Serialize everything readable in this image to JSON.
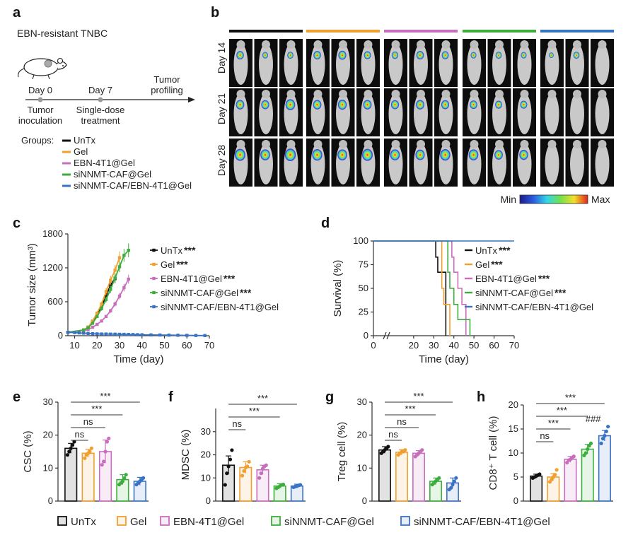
{
  "panel_labels": {
    "a": "a",
    "b": "b",
    "c": "c",
    "d": "d",
    "e": "e",
    "f": "f",
    "g": "g",
    "h": "h"
  },
  "colors": {
    "UnTx": "#111111",
    "Gel": "#f0a030",
    "EBN-4T1@Gel": "#c76fbd",
    "siNNMT-CAF@Gel": "#3dae3d",
    "siNNMT-CAF/EBN-4T1@Gel": "#3b73c4"
  },
  "panel_a": {
    "title": "EBN-resistant TNBC",
    "timeline": [
      {
        "day": "Day 0",
        "event1": "Tumor",
        "event2": "inoculation"
      },
      {
        "day": "Day 7",
        "event1": "Single-dose",
        "event2": "treatment"
      },
      {
        "day": "",
        "event1": "Tumor",
        "event2": "profiling"
      }
    ],
    "groups_label": "Groups:",
    "groups": [
      "UnTx",
      "Gel",
      "EBN-4T1@Gel",
      "siNNMT-CAF@Gel",
      "siNNMT-CAF/EBN-4T1@Gel"
    ]
  },
  "panel_b": {
    "days": [
      "Day 14",
      "Day 21",
      "Day 28"
    ],
    "colorbar_min": "Min",
    "colorbar_max": "Max",
    "signal_rows": [
      [
        [
          0.5,
          0.3,
          0.35
        ],
        [
          0.5,
          0.55,
          0.45
        ],
        [
          0.4,
          0.5,
          0.45
        ],
        [
          0.3,
          0.35,
          0.3
        ],
        [
          0.2,
          0.35,
          0
        ]
      ],
      [
        [
          0.6,
          0.55,
          0.75
        ],
        [
          0.6,
          0.65,
          0.6
        ],
        [
          0.55,
          0.6,
          0.55
        ],
        [
          0.5,
          0.45,
          0.45
        ],
        [
          0,
          0,
          0
        ]
      ],
      [
        [
          0.85,
          0.75,
          0.9
        ],
        [
          0.8,
          0.75,
          0.85
        ],
        [
          0.75,
          0.7,
          0.8
        ],
        [
          0.75,
          0.6,
          0.65
        ],
        [
          0,
          0,
          0
        ]
      ]
    ]
  },
  "chart_data": [
    {
      "panel": "c",
      "type": "line",
      "xlabel": "Time (day)",
      "ylabel": "Tumor size (mm³)",
      "xlim": [
        7,
        70
      ],
      "ylim": [
        0,
        1800
      ],
      "xticks": [
        10,
        20,
        30,
        40,
        50,
        60,
        70
      ],
      "yticks": [
        0,
        600,
        1200,
        1800
      ],
      "series": [
        {
          "name": "UnTx",
          "sig": "***",
          "x": [
            7,
            14,
            16,
            18,
            20,
            22,
            24,
            26,
            28
          ],
          "y": [
            60,
            100,
            150,
            250,
            380,
            520,
            700,
            900,
            1010
          ]
        },
        {
          "name": "Gel",
          "sig": "***",
          "x": [
            7,
            14,
            16,
            18,
            20,
            22,
            24,
            26,
            28,
            30
          ],
          "y": [
            60,
            100,
            150,
            260,
            400,
            560,
            780,
            980,
            1160,
            1380
          ]
        },
        {
          "name": "EBN-4T1@Gel",
          "sig": "***",
          "x": [
            7,
            14,
            16,
            18,
            20,
            22,
            24,
            26,
            28,
            30,
            32,
            34
          ],
          "y": [
            60,
            90,
            110,
            150,
            200,
            260,
            340,
            440,
            560,
            700,
            850,
            1000
          ]
        },
        {
          "name": "siNNMT-CAF@Gel",
          "sig": "***",
          "x": [
            7,
            14,
            16,
            18,
            20,
            22,
            24,
            26,
            28,
            30,
            32,
            34
          ],
          "y": [
            60,
            100,
            140,
            220,
            340,
            480,
            640,
            820,
            1020,
            1220,
            1420,
            1510
          ]
        },
        {
          "name": "siNNMT-CAF/EBN-4T1@Gel",
          "sig": "",
          "x": [
            7,
            10,
            12,
            14,
            16,
            18,
            20,
            22,
            24,
            26,
            28,
            30,
            32,
            34,
            36,
            38,
            40,
            44,
            48,
            52,
            56,
            60,
            64,
            68
          ],
          "y": [
            60,
            55,
            50,
            45,
            40,
            35,
            32,
            30,
            30,
            28,
            27,
            25,
            24,
            22,
            20,
            18,
            16,
            14,
            12,
            10,
            8,
            6,
            4,
            3
          ]
        }
      ]
    },
    {
      "panel": "d",
      "type": "line",
      "xlabel": "Time (day)",
      "ylabel": "Survival (%)",
      "xlim": [
        0,
        70
      ],
      "ylim": [
        0,
        100
      ],
      "xticks": [
        0,
        20,
        30,
        40,
        50,
        60,
        70
      ],
      "yticks": [
        0,
        25,
        50,
        75,
        100
      ],
      "series": [
        {
          "name": "UnTx",
          "sig": "***",
          "x": [
            0,
            30,
            31,
            32,
            33,
            34,
            36
          ],
          "y": [
            100,
            100,
            83,
            67,
            67,
            67,
            0
          ]
        },
        {
          "name": "Gel",
          "sig": "***",
          "x": [
            0,
            33,
            34,
            35,
            36,
            37,
            38
          ],
          "y": [
            100,
            100,
            50,
            33,
            33,
            33,
            0
          ]
        },
        {
          "name": "EBN-4T1@Gel",
          "sig": "***",
          "x": [
            0,
            38,
            39,
            40,
            42,
            44,
            46
          ],
          "y": [
            100,
            100,
            83,
            67,
            50,
            33,
            0
          ]
        },
        {
          "name": "siNNMT-CAF@Gel",
          "sig": "***",
          "x": [
            0,
            36,
            37,
            38,
            40,
            42,
            48
          ],
          "y": [
            100,
            100,
            67,
            50,
            33,
            17,
            0
          ]
        },
        {
          "name": "siNNMT-CAF/EBN-4T1@Gel",
          "sig": "",
          "x": [
            0,
            70
          ],
          "y": [
            100,
            100
          ]
        }
      ]
    },
    {
      "panel": "e",
      "type": "bar",
      "ylabel": "CSC (%)",
      "ylim": [
        0,
        30
      ],
      "yticks": [
        0,
        10,
        20,
        30
      ],
      "values": [
        16,
        14.5,
        15,
        6.5,
        6
      ],
      "errors": [
        1.5,
        1.2,
        3.5,
        1.5,
        1.2
      ],
      "points": [
        [
          14,
          15,
          16,
          17,
          18
        ],
        [
          13,
          14,
          14.5,
          15,
          16
        ],
        [
          11,
          12,
          15,
          18,
          19
        ],
        [
          5,
          5.5,
          6,
          7,
          8
        ],
        [
          5,
          5.5,
          6,
          6.5,
          7
        ]
      ],
      "comparisons": [
        {
          "label": "ns",
          "to": 1
        },
        {
          "label": "ns",
          "to": 2
        },
        {
          "label": "***",
          "to": 3
        },
        {
          "label": "***",
          "to": 4
        }
      ],
      "extra": ""
    },
    {
      "panel": "f",
      "type": "bar",
      "ylabel": "MDSC (%)",
      "ylim": [
        0,
        40
      ],
      "yticks": [
        0,
        10,
        20,
        30
      ],
      "values": [
        15.5,
        14.5,
        13.5,
        6.5,
        6.5
      ],
      "errors": [
        4,
        2.5,
        2,
        1,
        0.8
      ],
      "points": [
        [
          7,
          12,
          15,
          18,
          22
        ],
        [
          11,
          13,
          14.5,
          15,
          17
        ],
        [
          10,
          12,
          14,
          15,
          15.5
        ],
        [
          5.5,
          6,
          6.5,
          7,
          7.2
        ],
        [
          6,
          6.3,
          6.5,
          6.8,
          7
        ]
      ],
      "comparisons": [
        {
          "label": "ns",
          "to": 1
        },
        {
          "label": "***",
          "to": 3
        },
        {
          "label": "***",
          "to": 4
        }
      ],
      "extra": ""
    },
    {
      "panel": "g",
      "type": "bar",
      "ylabel": "Treg cell (%)",
      "ylim": [
        0,
        30
      ],
      "yticks": [
        0,
        10,
        20,
        30
      ],
      "values": [
        15.5,
        14.8,
        14.5,
        6,
        5.5
      ],
      "errors": [
        1,
        0.8,
        0.8,
        1,
        1.5
      ],
      "points": [
        [
          14.5,
          15,
          15.5,
          16,
          16.5
        ],
        [
          14,
          14.5,
          15,
          15,
          15.5
        ],
        [
          13.5,
          14,
          14.5,
          15,
          15.5
        ],
        [
          5,
          5.5,
          6,
          6.5,
          7
        ],
        [
          3.5,
          4,
          5,
          6,
          7
        ]
      ],
      "comparisons": [
        {
          "label": "ns",
          "to": 1
        },
        {
          "label": "ns",
          "to": 2
        },
        {
          "label": "***",
          "to": 3
        },
        {
          "label": "***",
          "to": 4
        }
      ],
      "extra": ""
    },
    {
      "panel": "h",
      "type": "bar",
      "ylabel": "CD8⁺ T cell (%)",
      "ylim": [
        0,
        20
      ],
      "yticks": [
        0,
        5,
        10,
        15,
        20
      ],
      "values": [
        5.2,
        5,
        8.7,
        10.8,
        13.6
      ],
      "errors": [
        0.4,
        0.7,
        0.6,
        1,
        1.1
      ],
      "points": [
        [
          4.8,
          5,
          5.2,
          5.4,
          5.6
        ],
        [
          4,
          4.5,
          5,
          5.5,
          6.5
        ],
        [
          8,
          8.5,
          8.7,
          9,
          9.3
        ],
        [
          9.5,
          10,
          10.8,
          11.5,
          12
        ],
        [
          12,
          13,
          13.6,
          14.5,
          15.5
        ]
      ],
      "comparisons": [
        {
          "label": "ns",
          "to": 1
        },
        {
          "label": "***",
          "to": 2
        },
        {
          "label": "***",
          "to": 3
        },
        {
          "label": "***",
          "to": 4
        }
      ],
      "extra": "###"
    }
  ],
  "bottom_legend": [
    "UnTx",
    "Gel",
    "EBN-4T1@Gel",
    "siNNMT-CAF@Gel",
    "siNNMT-CAF/EBN-4T1@Gel"
  ]
}
